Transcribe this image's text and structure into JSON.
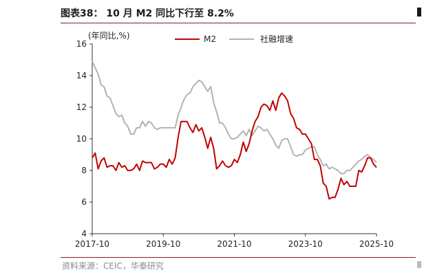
{
  "header": {
    "title": "图表38： 10 月 M2 同比下行至 8.2%"
  },
  "footer": {
    "source": "资料来源：CEIC，华泰研究"
  },
  "chart_data": {
    "type": "line",
    "unit_label": "(年同比,%)",
    "xlabel": "",
    "ylabel": "",
    "ylim": [
      4,
      16
    ],
    "yticks": [
      4,
      6,
      8,
      10,
      12,
      14,
      16
    ],
    "x_range": [
      "2017-10",
      "2025-10"
    ],
    "xticks": [
      "2017-10",
      "2019-10",
      "2021-10",
      "2023-10",
      "2025-10"
    ],
    "grid": false,
    "legend_position": "top-center",
    "colors": {
      "m2": "#c00000",
      "tsf": "#b3b3b3"
    },
    "series": [
      {
        "name": "M2",
        "key": "m2",
        "points": [
          [
            "2017-10",
            8.8
          ],
          [
            "2017-11",
            9.1
          ],
          [
            "2017-12",
            8.1
          ],
          [
            "2018-01",
            8.6
          ],
          [
            "2018-02",
            8.8
          ],
          [
            "2018-03",
            8.2
          ],
          [
            "2018-04",
            8.3
          ],
          [
            "2018-05",
            8.3
          ],
          [
            "2018-06",
            8.0
          ],
          [
            "2018-07",
            8.5
          ],
          [
            "2018-08",
            8.2
          ],
          [
            "2018-09",
            8.3
          ],
          [
            "2018-10",
            8.0
          ],
          [
            "2018-11",
            8.0
          ],
          [
            "2018-12",
            8.1
          ],
          [
            "2019-01",
            8.4
          ],
          [
            "2019-02",
            8.0
          ],
          [
            "2019-03",
            8.6
          ],
          [
            "2019-04",
            8.5
          ],
          [
            "2019-05",
            8.5
          ],
          [
            "2019-06",
            8.5
          ],
          [
            "2019-07",
            8.1
          ],
          [
            "2019-08",
            8.2
          ],
          [
            "2019-09",
            8.4
          ],
          [
            "2019-10",
            8.4
          ],
          [
            "2019-11",
            8.2
          ],
          [
            "2019-12",
            8.7
          ],
          [
            "2020-01",
            8.4
          ],
          [
            "2020-02",
            8.8
          ],
          [
            "2020-03",
            10.1
          ],
          [
            "2020-04",
            11.1
          ],
          [
            "2020-05",
            11.1
          ],
          [
            "2020-06",
            11.1
          ],
          [
            "2020-07",
            10.7
          ],
          [
            "2020-08",
            10.4
          ],
          [
            "2020-09",
            10.9
          ],
          [
            "2020-10",
            10.5
          ],
          [
            "2020-11",
            10.7
          ],
          [
            "2020-12",
            10.1
          ],
          [
            "2021-01",
            9.4
          ],
          [
            "2021-02",
            10.1
          ],
          [
            "2021-03",
            9.4
          ],
          [
            "2021-04",
            8.1
          ],
          [
            "2021-05",
            8.3
          ],
          [
            "2021-06",
            8.6
          ],
          [
            "2021-07",
            8.3
          ],
          [
            "2021-08",
            8.2
          ],
          [
            "2021-09",
            8.3
          ],
          [
            "2021-10",
            8.7
          ],
          [
            "2021-11",
            8.5
          ],
          [
            "2021-12",
            9.0
          ],
          [
            "2022-01",
            9.8
          ],
          [
            "2022-02",
            9.2
          ],
          [
            "2022-03",
            9.7
          ],
          [
            "2022-04",
            10.5
          ],
          [
            "2022-05",
            11.1
          ],
          [
            "2022-06",
            11.4
          ],
          [
            "2022-07",
            12.0
          ],
          [
            "2022-08",
            12.2
          ],
          [
            "2022-09",
            12.1
          ],
          [
            "2022-10",
            11.8
          ],
          [
            "2022-11",
            12.4
          ],
          [
            "2022-12",
            11.8
          ],
          [
            "2023-01",
            12.6
          ],
          [
            "2023-02",
            12.9
          ],
          [
            "2023-03",
            12.7
          ],
          [
            "2023-04",
            12.4
          ],
          [
            "2023-05",
            11.6
          ],
          [
            "2023-06",
            11.3
          ],
          [
            "2023-07",
            10.7
          ],
          [
            "2023-08",
            10.6
          ],
          [
            "2023-09",
            10.3
          ],
          [
            "2023-10",
            10.3
          ],
          [
            "2023-11",
            10.0
          ],
          [
            "2023-12",
            9.7
          ],
          [
            "2024-01",
            8.7
          ],
          [
            "2024-02",
            8.7
          ],
          [
            "2024-03",
            8.3
          ],
          [
            "2024-04",
            7.2
          ],
          [
            "2024-05",
            7.0
          ],
          [
            "2024-06",
            6.2
          ],
          [
            "2024-07",
            6.3
          ],
          [
            "2024-08",
            6.3
          ],
          [
            "2024-09",
            6.8
          ],
          [
            "2024-10",
            7.5
          ],
          [
            "2024-11",
            7.1
          ],
          [
            "2024-12",
            7.3
          ],
          [
            "2025-01",
            7.0
          ],
          [
            "2025-02",
            7.0
          ],
          [
            "2025-03",
            7.0
          ],
          [
            "2025-04",
            8.0
          ],
          [
            "2025-05",
            7.9
          ],
          [
            "2025-06",
            8.3
          ],
          [
            "2025-07",
            8.8
          ],
          [
            "2025-08",
            8.8
          ],
          [
            "2025-09",
            8.4
          ],
          [
            "2025-10",
            8.2
          ]
        ]
      },
      {
        "name": "社融增速",
        "key": "tsf",
        "points": [
          [
            "2017-10",
            14.9
          ],
          [
            "2017-11",
            14.5
          ],
          [
            "2017-12",
            14.1
          ],
          [
            "2018-01",
            13.4
          ],
          [
            "2018-02",
            13.3
          ],
          [
            "2018-03",
            12.7
          ],
          [
            "2018-04",
            12.6
          ],
          [
            "2018-05",
            12.1
          ],
          [
            "2018-06",
            11.6
          ],
          [
            "2018-07",
            11.4
          ],
          [
            "2018-08",
            11.5
          ],
          [
            "2018-09",
            11.0
          ],
          [
            "2018-10",
            10.8
          ],
          [
            "2018-11",
            10.3
          ],
          [
            "2018-12",
            10.3
          ],
          [
            "2019-01",
            10.7
          ],
          [
            "2019-02",
            10.7
          ],
          [
            "2019-03",
            11.1
          ],
          [
            "2019-04",
            10.8
          ],
          [
            "2019-05",
            11.1
          ],
          [
            "2019-06",
            11.0
          ],
          [
            "2019-07",
            10.7
          ],
          [
            "2019-08",
            10.6
          ],
          [
            "2019-09",
            10.7
          ],
          [
            "2019-10",
            10.7
          ],
          [
            "2019-11",
            10.7
          ],
          [
            "2019-12",
            10.7
          ],
          [
            "2020-01",
            10.7
          ],
          [
            "2020-02",
            10.7
          ],
          [
            "2020-03",
            11.5
          ],
          [
            "2020-04",
            12.0
          ],
          [
            "2020-05",
            12.5
          ],
          [
            "2020-06",
            12.8
          ],
          [
            "2020-07",
            12.9
          ],
          [
            "2020-08",
            13.3
          ],
          [
            "2020-09",
            13.5
          ],
          [
            "2020-10",
            13.7
          ],
          [
            "2020-11",
            13.6
          ],
          [
            "2020-12",
            13.3
          ],
          [
            "2021-01",
            13.0
          ],
          [
            "2021-02",
            13.3
          ],
          [
            "2021-03",
            12.3
          ],
          [
            "2021-04",
            11.7
          ],
          [
            "2021-05",
            11.0
          ],
          [
            "2021-06",
            11.0
          ],
          [
            "2021-07",
            10.7
          ],
          [
            "2021-08",
            10.3
          ],
          [
            "2021-09",
            10.0
          ],
          [
            "2021-10",
            10.0
          ],
          [
            "2021-11",
            10.1
          ],
          [
            "2021-12",
            10.3
          ],
          [
            "2022-01",
            10.5
          ],
          [
            "2022-02",
            10.2
          ],
          [
            "2022-03",
            10.6
          ],
          [
            "2022-04",
            10.2
          ],
          [
            "2022-05",
            10.5
          ],
          [
            "2022-06",
            10.8
          ],
          [
            "2022-07",
            10.7
          ],
          [
            "2022-08",
            10.5
          ],
          [
            "2022-09",
            10.6
          ],
          [
            "2022-10",
            10.3
          ],
          [
            "2022-11",
            10.0
          ],
          [
            "2022-12",
            9.6
          ],
          [
            "2023-01",
            9.4
          ],
          [
            "2023-02",
            9.9
          ],
          [
            "2023-03",
            10.0
          ],
          [
            "2023-04",
            10.0
          ],
          [
            "2023-05",
            9.5
          ],
          [
            "2023-06",
            9.0
          ],
          [
            "2023-07",
            8.9
          ],
          [
            "2023-08",
            9.0
          ],
          [
            "2023-09",
            9.0
          ],
          [
            "2023-10",
            9.3
          ],
          [
            "2023-11",
            9.4
          ],
          [
            "2023-12",
            9.5
          ],
          [
            "2024-01",
            9.5
          ],
          [
            "2024-02",
            9.0
          ],
          [
            "2024-03",
            8.7
          ],
          [
            "2024-04",
            8.3
          ],
          [
            "2024-05",
            8.4
          ],
          [
            "2024-06",
            8.1
          ],
          [
            "2024-07",
            8.2
          ],
          [
            "2024-08",
            8.1
          ],
          [
            "2024-09",
            8.0
          ],
          [
            "2024-10",
            7.8
          ],
          [
            "2024-11",
            7.8
          ],
          [
            "2024-12",
            8.0
          ],
          [
            "2025-01",
            8.0
          ],
          [
            "2025-02",
            8.2
          ],
          [
            "2025-03",
            8.4
          ],
          [
            "2025-04",
            8.6
          ],
          [
            "2025-05",
            8.7
          ],
          [
            "2025-06",
            8.9
          ],
          [
            "2025-07",
            9.0
          ],
          [
            "2025-08",
            8.8
          ],
          [
            "2025-09",
            8.7
          ],
          [
            "2025-10",
            8.5
          ]
        ]
      }
    ]
  }
}
